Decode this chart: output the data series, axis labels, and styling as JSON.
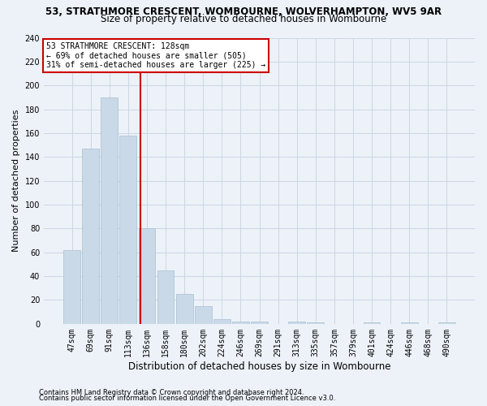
{
  "title_line1": "53, STRATHMORE CRESCENT, WOMBOURNE, WOLVERHAMPTON, WV5 9AR",
  "title_line2": "Size of property relative to detached houses in Wombourne",
  "xlabel": "Distribution of detached houses by size in Wombourne",
  "ylabel": "Number of detached properties",
  "footer_line1": "Contains HM Land Registry data © Crown copyright and database right 2024.",
  "footer_line2": "Contains public sector information licensed under the Open Government Licence v3.0.",
  "categories": [
    "47sqm",
    "69sqm",
    "91sqm",
    "113sqm",
    "136sqm",
    "158sqm",
    "180sqm",
    "202sqm",
    "224sqm",
    "246sqm",
    "269sqm",
    "291sqm",
    "313sqm",
    "335sqm",
    "357sqm",
    "379sqm",
    "401sqm",
    "424sqm",
    "446sqm",
    "468sqm",
    "490sqm"
  ],
  "values": [
    62,
    147,
    190,
    158,
    80,
    45,
    25,
    15,
    4,
    2,
    2,
    0,
    2,
    1,
    0,
    0,
    1,
    0,
    1,
    0,
    1
  ],
  "bar_color": "#c9d9e8",
  "bar_edge_color": "#a8bfce",
  "grid_color": "#cdd6e4",
  "annotation_text_line1": "53 STRATHMORE CRESCENT: 128sqm",
  "annotation_text_line2": "← 69% of detached houses are smaller (505)",
  "annotation_text_line3": "31% of semi-detached houses are larger (225) →",
  "annotation_box_facecolor": "#ffffff",
  "annotation_box_edgecolor": "#cc0000",
  "red_line_color": "#cc0000",
  "ylim": [
    0,
    240
  ],
  "yticks": [
    0,
    20,
    40,
    60,
    80,
    100,
    120,
    140,
    160,
    180,
    200,
    220,
    240
  ],
  "background_color": "#edf2f9",
  "title1_fontsize": 8.5,
  "title2_fontsize": 8.5,
  "ylabel_fontsize": 8,
  "xlabel_fontsize": 8.5,
  "tick_fontsize": 7,
  "ann_fontsize": 7,
  "footer_fontsize": 6
}
